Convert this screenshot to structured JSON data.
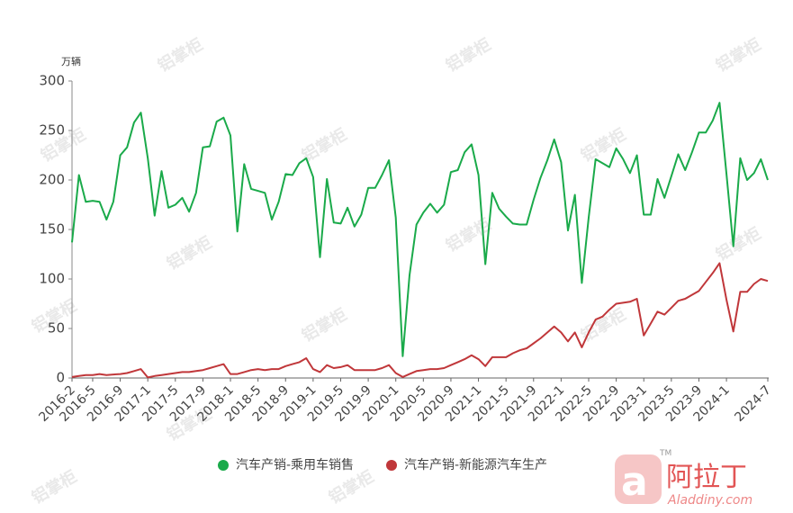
{
  "chart_data": {
    "type": "line",
    "y_unit": "万辆",
    "categories": [
      "2016-2",
      null,
      null,
      "2016-5",
      null,
      null,
      null,
      "2016-9",
      null,
      null,
      null,
      "2017-1",
      null,
      null,
      null,
      "2017-5",
      null,
      null,
      null,
      "2017-9",
      null,
      null,
      null,
      "2018-1",
      null,
      null,
      null,
      "2018-5",
      null,
      null,
      null,
      "2018-9",
      null,
      null,
      null,
      "2019-1",
      null,
      null,
      null,
      "2019-5",
      null,
      null,
      null,
      "2019-9",
      null,
      null,
      null,
      "2020-1",
      null,
      null,
      null,
      "2020-5",
      null,
      null,
      null,
      "2020-9",
      null,
      null,
      null,
      "2021-1",
      null,
      null,
      null,
      "2021-5",
      null,
      null,
      null,
      "2021-9",
      null,
      null,
      null,
      "2022-1",
      null,
      null,
      null,
      "2022-5",
      null,
      null,
      null,
      "2022-9",
      null,
      null,
      null,
      "2023-1",
      null,
      null,
      null,
      "2023-5",
      null,
      null,
      null,
      "2023-9",
      null,
      null,
      null,
      "2024-1",
      null,
      null,
      null,
      null,
      null,
      "2024-7"
    ],
    "series": [
      {
        "name": "汽车产销-乘用车销售",
        "color": "#1aaa4a",
        "values": [
          137,
          205,
          178,
          179,
          178,
          160,
          178,
          225,
          233,
          258,
          268,
          222,
          164,
          209,
          172,
          175,
          182,
          168,
          187,
          233,
          234,
          259,
          263,
          245,
          148,
          216,
          191,
          189,
          187,
          160,
          178,
          206,
          205,
          217,
          222,
          203,
          122,
          201,
          157,
          156,
          172,
          153,
          165,
          192,
          192,
          205,
          220,
          162,
          22,
          104,
          155,
          167,
          176,
          167,
          175,
          208,
          210,
          228,
          236,
          205,
          115,
          187,
          171,
          163,
          156,
          155,
          155,
          180,
          202,
          220,
          241,
          218,
          149,
          185,
          96,
          162,
          221,
          217,
          213,
          232,
          221,
          207,
          225,
          165,
          165,
          201,
          182,
          204,
          226,
          210,
          228,
          248,
          248,
          260,
          278,
          206,
          133,
          222,
          200,
          207,
          221,
          200
        ]
      },
      {
        "name": "汽车产销-新能源汽车生产",
        "color": "#c0373a",
        "values": [
          1,
          2,
          3,
          3,
          4,
          3,
          3.5,
          4,
          5,
          7,
          9,
          0.5,
          2,
          3,
          4,
          5,
          6,
          6,
          7,
          8,
          10,
          12,
          14,
          4,
          4,
          6,
          8,
          9,
          8,
          9,
          9,
          12,
          14,
          16,
          20,
          9,
          6,
          13,
          10,
          11,
          13,
          8,
          8,
          8,
          8,
          10,
          13,
          5,
          1,
          4,
          7,
          8,
          9,
          9,
          10,
          13,
          16,
          19,
          23,
          19,
          12,
          21,
          21,
          21,
          25,
          28,
          30,
          35,
          40,
          46,
          52,
          46,
          37,
          46,
          31,
          46,
          59,
          62,
          69,
          75,
          76,
          77,
          80,
          43,
          55,
          67,
          64,
          71,
          78,
          80,
          84,
          88,
          97,
          106,
          116,
          79,
          47,
          87,
          87,
          95,
          100,
          98
        ]
      }
    ],
    "ylim": [
      0,
      300
    ],
    "yticks": [
      0,
      50,
      100,
      150,
      200,
      250,
      300
    ],
    "legend": "bottom",
    "logo": {
      "name": "阿拉丁",
      "site": "Aladdiny.com",
      "mark": "TM"
    }
  }
}
